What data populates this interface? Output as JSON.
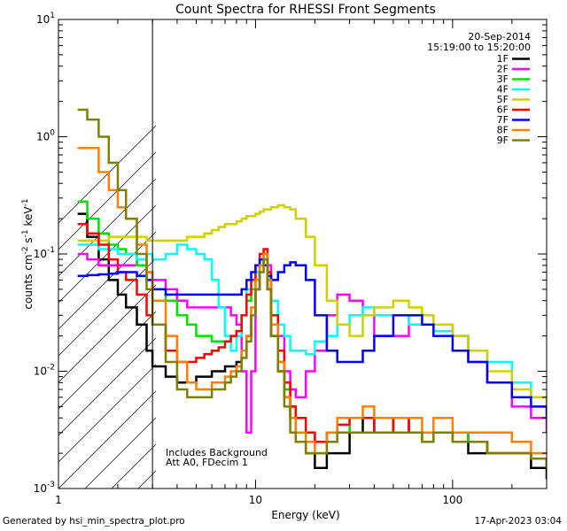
{
  "chart_data": {
    "type": "line",
    "title": "Count Spectra for RHESSI Front Segments",
    "xlabel": "Energy (keV)",
    "ylabel": "counts cm-2 s-1 keV-1",
    "xscale": "log",
    "yscale": "log",
    "xlim": [
      1,
      300
    ],
    "ylim": [
      0.001,
      10
    ],
    "x_ticks": [
      {
        "value": 1,
        "label": "1"
      },
      {
        "value": 10,
        "label": "10"
      },
      {
        "value": 100,
        "label": "100"
      }
    ],
    "y_ticks": [
      {
        "value": 0.001,
        "base": "10",
        "exp": "-3"
      },
      {
        "value": 0.01,
        "base": "10",
        "exp": "-2"
      },
      {
        "value": 0.1,
        "base": "10",
        "exp": "-1"
      },
      {
        "value": 1,
        "base": "10",
        "exp": "0"
      },
      {
        "value": 10,
        "base": "10",
        "exp": "1"
      }
    ],
    "hatched_region": [
      1,
      3
    ],
    "annotations": {
      "date": "20-Sep-2014",
      "time_range": "15:19:00 to 15:20:00",
      "background_note": "Includes Background",
      "attenuator_note": "Att A0, FDecim 1"
    },
    "legend_position": "top-right",
    "series": [
      {
        "name": "1F",
        "color": "#000000",
        "x": [
          1.25,
          1.4,
          1.6,
          1.8,
          2.0,
          2.2,
          2.5,
          2.8,
          3.0,
          3.5,
          4.0,
          4.5,
          5.0,
          5.5,
          6.0,
          6.5,
          7.0,
          7.5,
          8.0,
          8.5,
          9.0,
          9.5,
          10.0,
          10.5,
          11.0,
          11.5,
          12.0,
          13.0,
          14.0,
          15.0,
          16.0,
          18.0,
          20.0,
          23.0,
          26.0,
          30.0,
          35.0,
          40.0,
          50.0,
          60.0,
          70.0,
          80.0,
          100.0,
          120.0,
          150.0,
          200.0,
          250.0,
          300.0
        ],
        "y": [
          0.22,
          0.14,
          0.09,
          0.06,
          0.045,
          0.035,
          0.025,
          0.015,
          0.011,
          0.009,
          0.008,
          0.008,
          0.009,
          0.009,
          0.01,
          0.01,
          0.011,
          0.011,
          0.012,
          0.015,
          0.02,
          0.03,
          0.05,
          0.08,
          0.09,
          0.05,
          0.02,
          0.01,
          0.006,
          0.004,
          0.003,
          0.002,
          0.0015,
          0.002,
          0.002,
          0.003,
          0.004,
          0.003,
          0.004,
          0.003,
          0.003,
          0.003,
          0.003,
          0.002,
          0.002,
          0.002,
          0.0015,
          0.0012
        ]
      },
      {
        "name": "2F",
        "color": "#ff00ff",
        "x": [
          1.25,
          1.4,
          1.6,
          1.8,
          2.0,
          2.2,
          2.5,
          2.8,
          3.0,
          3.5,
          4.0,
          4.5,
          5.0,
          5.5,
          6.0,
          6.5,
          7.0,
          7.5,
          8.0,
          8.5,
          9.0,
          9.5,
          10.0,
          10.5,
          11.0,
          11.5,
          12.0,
          13.0,
          14.0,
          15.0,
          16.0,
          18.0,
          20.0,
          23.0,
          26.0,
          30.0,
          35.0,
          40.0,
          50.0,
          60.0,
          70.0,
          80.0,
          100.0,
          120.0,
          150.0,
          200.0,
          250.0,
          300.0
        ],
        "y": [
          0.1,
          0.09,
          0.08,
          0.08,
          0.08,
          0.08,
          0.09,
          0.07,
          0.06,
          0.05,
          0.04,
          0.035,
          0.035,
          0.035,
          0.035,
          0.035,
          0.035,
          0.03,
          0.025,
          0.01,
          0.003,
          0.01,
          0.05,
          0.08,
          0.1,
          0.08,
          0.04,
          0.02,
          0.01,
          0.007,
          0.006,
          0.01,
          0.015,
          0.03,
          0.045,
          0.04,
          0.03,
          0.02,
          0.02,
          0.03,
          0.03,
          0.025,
          0.02,
          0.012,
          0.008,
          0.005,
          0.004,
          0.003
        ]
      },
      {
        "name": "3F",
        "color": "#00e000",
        "x": [
          1.25,
          1.4,
          1.6,
          1.8,
          2.0,
          2.2,
          2.5,
          2.8,
          3.0,
          3.5,
          4.0,
          4.5,
          5.0,
          5.5,
          6.0,
          6.5,
          7.0,
          7.5,
          8.0,
          8.5,
          9.0,
          9.5,
          10.0,
          10.5,
          11.0,
          11.5,
          12.0,
          13.0,
          14.0,
          15.0,
          16.0,
          18.0,
          20.0,
          23.0,
          26.0,
          30.0,
          35.0,
          40.0,
          50.0,
          60.0,
          70.0,
          80.0,
          100.0,
          120.0,
          150.0,
          200.0,
          250.0,
          300.0
        ],
        "y": [
          0.28,
          0.2,
          0.15,
          0.12,
          0.11,
          0.1,
          0.08,
          0.06,
          0.05,
          0.04,
          0.03,
          0.025,
          0.02,
          0.02,
          0.018,
          0.018,
          0.018,
          0.02,
          0.022,
          0.03,
          0.04,
          0.05,
          0.07,
          0.09,
          0.1,
          0.06,
          0.025,
          0.012,
          0.007,
          0.005,
          0.004,
          0.003,
          0.0025,
          0.003,
          0.003,
          0.004,
          0.004,
          0.004,
          0.003,
          0.003,
          0.0025,
          0.003,
          0.003,
          0.0025,
          0.002,
          0.002,
          0.0018,
          0.0015
        ]
      },
      {
        "name": "4F",
        "color": "#00ffff",
        "x": [
          1.25,
          1.4,
          1.6,
          1.8,
          2.0,
          2.2,
          2.5,
          2.8,
          3.0,
          3.5,
          4.0,
          4.5,
          5.0,
          5.5,
          6.0,
          6.5,
          7.0,
          7.5,
          8.0,
          8.5,
          9.0,
          9.5,
          10.0,
          10.5,
          11.0,
          11.5,
          12.0,
          13.0,
          14.0,
          15.0,
          16.0,
          18.0,
          20.0,
          23.0,
          26.0,
          30.0,
          35.0,
          40.0,
          50.0,
          60.0,
          70.0,
          80.0,
          100.0,
          120.0,
          150.0,
          200.0,
          250.0,
          300.0
        ],
        "y": [
          0.12,
          0.12,
          0.11,
          0.11,
          0.1,
          0.1,
          0.09,
          0.1,
          0.09,
          0.1,
          0.12,
          0.11,
          0.1,
          0.09,
          0.06,
          0.035,
          0.02,
          0.015,
          0.02,
          0.03,
          0.05,
          0.06,
          0.07,
          0.08,
          0.09,
          0.07,
          0.04,
          0.025,
          0.02,
          0.015,
          0.015,
          0.014,
          0.018,
          0.02,
          0.025,
          0.03,
          0.035,
          0.03,
          0.03,
          0.025,
          0.025,
          0.022,
          0.02,
          0.015,
          0.012,
          0.008,
          0.006,
          0.005
        ]
      },
      {
        "name": "5F",
        "color": "#d0d000",
        "x": [
          1.25,
          1.4,
          1.6,
          1.8,
          2.0,
          2.2,
          2.5,
          2.8,
          3.0,
          3.5,
          4.0,
          4.5,
          5.0,
          5.5,
          6.0,
          6.5,
          7.0,
          7.5,
          8.0,
          8.5,
          9.0,
          9.5,
          10.0,
          10.5,
          11.0,
          11.5,
          12.0,
          13.0,
          14.0,
          15.0,
          16.0,
          18.0,
          20.0,
          23.0,
          26.0,
          30.0,
          35.0,
          40.0,
          50.0,
          60.0,
          70.0,
          80.0,
          100.0,
          120.0,
          150.0,
          200.0,
          250.0,
          300.0
        ],
        "y": [
          0.13,
          0.13,
          0.13,
          0.14,
          0.14,
          0.14,
          0.14,
          0.13,
          0.13,
          0.13,
          0.13,
          0.14,
          0.14,
          0.15,
          0.16,
          0.17,
          0.18,
          0.18,
          0.19,
          0.2,
          0.21,
          0.21,
          0.22,
          0.23,
          0.24,
          0.24,
          0.25,
          0.26,
          0.25,
          0.24,
          0.2,
          0.14,
          0.08,
          0.04,
          0.025,
          0.02,
          0.03,
          0.035,
          0.04,
          0.035,
          0.03,
          0.025,
          0.02,
          0.015,
          0.01,
          0.007,
          0.006,
          0.005
        ]
      },
      {
        "name": "6F",
        "color": "#ff0000",
        "x": [
          1.25,
          1.4,
          1.6,
          1.8,
          2.0,
          2.2,
          2.5,
          2.8,
          3.0,
          3.5,
          4.0,
          4.5,
          5.0,
          5.5,
          6.0,
          6.5,
          7.0,
          7.5,
          8.0,
          8.5,
          9.0,
          9.5,
          10.0,
          10.5,
          11.0,
          11.5,
          12.0,
          13.0,
          14.0,
          15.0,
          16.0,
          18.0,
          20.0,
          23.0,
          26.0,
          30.0,
          35.0,
          40.0,
          50.0,
          60.0,
          70.0,
          80.0,
          100.0,
          120.0,
          150.0,
          200.0,
          250.0,
          300.0
        ],
        "y": [
          0.18,
          0.15,
          0.12,
          0.09,
          0.07,
          0.06,
          0.045,
          0.03,
          0.025,
          0.015,
          0.012,
          0.012,
          0.013,
          0.014,
          0.015,
          0.016,
          0.018,
          0.02,
          0.022,
          0.03,
          0.045,
          0.06,
          0.08,
          0.1,
          0.11,
          0.07,
          0.03,
          0.015,
          0.008,
          0.005,
          0.004,
          0.003,
          0.0025,
          0.003,
          0.0035,
          0.004,
          0.004,
          0.003,
          0.004,
          0.003,
          0.003,
          0.003,
          0.0025,
          0.0025,
          0.002,
          0.002,
          0.0018,
          0.0015
        ]
      },
      {
        "name": "7F",
        "color": "#0000ff",
        "x": [
          1.25,
          1.4,
          1.6,
          1.8,
          2.0,
          2.2,
          2.5,
          2.8,
          3.0,
          3.5,
          4.0,
          4.5,
          5.0,
          5.5,
          6.0,
          6.5,
          7.0,
          7.5,
          8.0,
          8.5,
          9.0,
          9.5,
          10.0,
          10.5,
          11.0,
          11.5,
          12.0,
          13.0,
          14.0,
          15.0,
          16.0,
          18.0,
          20.0,
          23.0,
          26.0,
          30.0,
          35.0,
          40.0,
          50.0,
          60.0,
          70.0,
          80.0,
          100.0,
          120.0,
          150.0,
          200.0,
          250.0,
          300.0
        ],
        "y": [
          0.065,
          0.066,
          0.067,
          0.068,
          0.07,
          0.07,
          0.065,
          0.06,
          0.05,
          0.045,
          0.045,
          0.045,
          0.045,
          0.045,
          0.045,
          0.045,
          0.045,
          0.045,
          0.045,
          0.05,
          0.06,
          0.07,
          0.08,
          0.09,
          0.08,
          0.065,
          0.06,
          0.07,
          0.08,
          0.085,
          0.08,
          0.06,
          0.03,
          0.015,
          0.012,
          0.012,
          0.015,
          0.02,
          0.03,
          0.03,
          0.025,
          0.02,
          0.015,
          0.012,
          0.008,
          0.006,
          0.005,
          0.004
        ]
      },
      {
        "name": "8F",
        "color": "#ff8000",
        "x": [
          1.25,
          1.4,
          1.6,
          1.8,
          2.0,
          2.2,
          2.5,
          2.8,
          3.0,
          3.5,
          4.0,
          4.5,
          5.0,
          5.5,
          6.0,
          6.5,
          7.0,
          7.5,
          8.0,
          8.5,
          9.0,
          9.5,
          10.0,
          10.5,
          11.0,
          11.5,
          12.0,
          13.0,
          14.0,
          15.0,
          16.0,
          18.0,
          20.0,
          23.0,
          26.0,
          30.0,
          35.0,
          40.0,
          50.0,
          60.0,
          70.0,
          80.0,
          100.0,
          120.0,
          150.0,
          200.0,
          250.0,
          300.0
        ],
        "y": [
          0.8,
          0.8,
          0.5,
          0.35,
          0.25,
          0.2,
          0.12,
          0.07,
          0.04,
          0.02,
          0.012,
          0.008,
          0.007,
          0.007,
          0.008,
          0.008,
          0.009,
          0.01,
          0.011,
          0.015,
          0.02,
          0.035,
          0.06,
          0.08,
          0.1,
          0.06,
          0.025,
          0.012,
          0.006,
          0.004,
          0.003,
          0.0025,
          0.002,
          0.003,
          0.004,
          0.004,
          0.005,
          0.004,
          0.004,
          0.004,
          0.003,
          0.004,
          0.003,
          0.003,
          0.003,
          0.0025,
          0.002,
          0.002
        ]
      },
      {
        "name": "9F",
        "color": "#808000",
        "x": [
          1.25,
          1.4,
          1.6,
          1.8,
          2.0,
          2.2,
          2.5,
          2.8,
          3.0,
          3.5,
          4.0,
          4.5,
          5.0,
          5.5,
          6.0,
          6.5,
          7.0,
          7.5,
          8.0,
          8.5,
          9.0,
          9.5,
          10.0,
          10.5,
          11.0,
          11.5,
          12.0,
          13.0,
          14.0,
          15.0,
          16.0,
          18.0,
          20.0,
          23.0,
          26.0,
          30.0,
          35.0,
          40.0,
          50.0,
          60.0,
          70.0,
          80.0,
          100.0,
          120.0,
          150.0,
          200.0,
          250.0,
          300.0
        ],
        "y": [
          1.7,
          1.4,
          1.0,
          0.6,
          0.35,
          0.2,
          0.1,
          0.05,
          0.025,
          0.012,
          0.007,
          0.006,
          0.006,
          0.006,
          0.007,
          0.007,
          0.008,
          0.009,
          0.01,
          0.013,
          0.018,
          0.03,
          0.05,
          0.07,
          0.09,
          0.05,
          0.02,
          0.01,
          0.005,
          0.003,
          0.0025,
          0.002,
          0.002,
          0.0025,
          0.003,
          0.003,
          0.003,
          0.003,
          0.003,
          0.003,
          0.0025,
          0.003,
          0.0025,
          0.0025,
          0.002,
          0.002,
          0.0018,
          0.0015
        ]
      }
    ]
  },
  "footer": {
    "generated_by": "Generated by hsi_min_spectra_plot.pro",
    "timestamp": "17-Apr-2023 03:04"
  }
}
